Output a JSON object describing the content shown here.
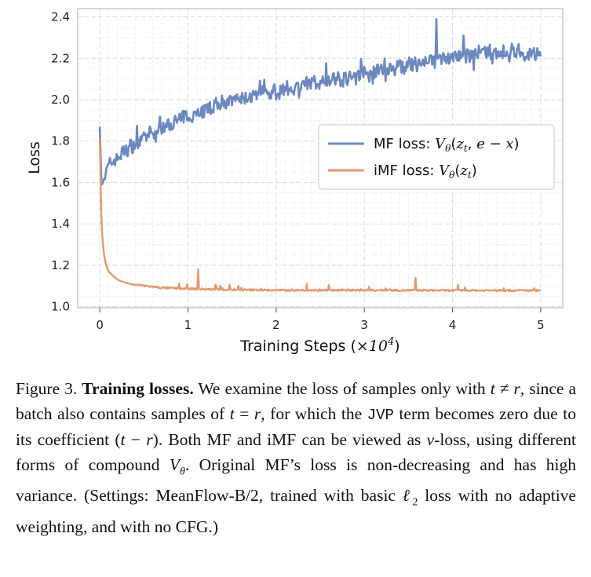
{
  "chart_data": {
    "type": "line",
    "xlabel": "Training Steps (×10⁴)",
    "ylabel": "Loss",
    "xlim": [
      -0.25,
      5.25
    ],
    "ylim": [
      0.995,
      2.44
    ],
    "x_ticks": [
      0,
      1,
      2,
      3,
      4,
      5
    ],
    "y_ticks": [
      "1.0",
      "1.2",
      "1.4",
      "1.6",
      "1.8",
      "2.0",
      "2.2",
      "2.4"
    ],
    "grid": true,
    "legend_position": "center-right",
    "series": [
      {
        "name": "MF loss: Vθ(zt, e − x)",
        "color": "#6b88bf",
        "x": [
          0,
          0.02,
          0.05,
          0.1,
          0.2,
          0.3,
          0.5,
          0.7,
          1.0,
          1.3,
          1.6,
          2.0,
          2.3,
          2.6,
          3.0,
          3.3,
          3.6,
          3.8,
          4.0,
          4.3,
          4.6,
          4.8,
          5.0
        ],
        "values": [
          1.87,
          1.58,
          1.62,
          1.68,
          1.72,
          1.76,
          1.81,
          1.86,
          1.92,
          1.97,
          2.0,
          2.04,
          2.07,
          2.09,
          2.12,
          2.15,
          2.17,
          2.19,
          2.21,
          2.22,
          2.23,
          2.23,
          2.22
        ]
      },
      {
        "name": "iMF loss: Vθ(zt)",
        "color": "#e29a6e",
        "x": [
          0,
          0.01,
          0.02,
          0.04,
          0.06,
          0.1,
          0.15,
          0.2,
          0.3,
          0.4,
          0.5,
          0.7,
          1.0,
          1.5,
          2.0,
          3.0,
          4.0,
          5.0
        ],
        "values": [
          1.81,
          1.6,
          1.4,
          1.28,
          1.22,
          1.17,
          1.15,
          1.13,
          1.115,
          1.105,
          1.1,
          1.09,
          1.085,
          1.08,
          1.078,
          1.078,
          1.077,
          1.077
        ]
      }
    ],
    "annotations": [
      {
        "series": "iMF loss: Vθ(zt)",
        "x": 1.12,
        "y": 1.18
      },
      {
        "series": "iMF loss: Vθ(zt)",
        "x": 3.58,
        "y": 1.14
      },
      {
        "series": "MF loss: Vθ(zt, e − x)",
        "x": 3.82,
        "y": 2.39
      }
    ]
  },
  "caption": {
    "prefix": "Figure 3.",
    "bold": "Training losses.",
    "text": "We examine the loss of samples only with t ≠ r, since a batch also contains samples of t = r, for which the JVP term becomes zero due to its coefficient (t − r). Both MF and iMF can be viewed as v-loss, using different forms of compound Vθ. Original MF’s loss is non-decreasing and has high variance. (Settings: MeanFlow-B/2, trained with basic ℓ2 loss with no adaptive weighting, and with no CFG.)"
  }
}
